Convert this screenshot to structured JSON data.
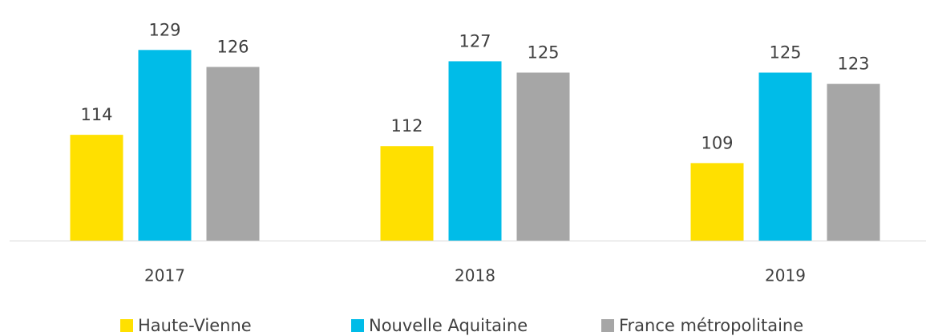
{
  "chart_data": {
    "type": "bar",
    "categories": [
      "2017",
      "2018",
      "2019"
    ],
    "series": [
      {
        "name": "Haute-Vienne",
        "color": "#ffe000",
        "values": [
          114,
          112,
          109
        ]
      },
      {
        "name": "Nouvelle Aquitaine",
        "color": "#00bce8",
        "values": [
          129,
          127,
          125
        ]
      },
      {
        "name": "France métropolitaine",
        "color": "#a6a6a6",
        "values": [
          126,
          125,
          123
        ]
      }
    ],
    "ylim": [
      95.3,
      135
    ]
  }
}
